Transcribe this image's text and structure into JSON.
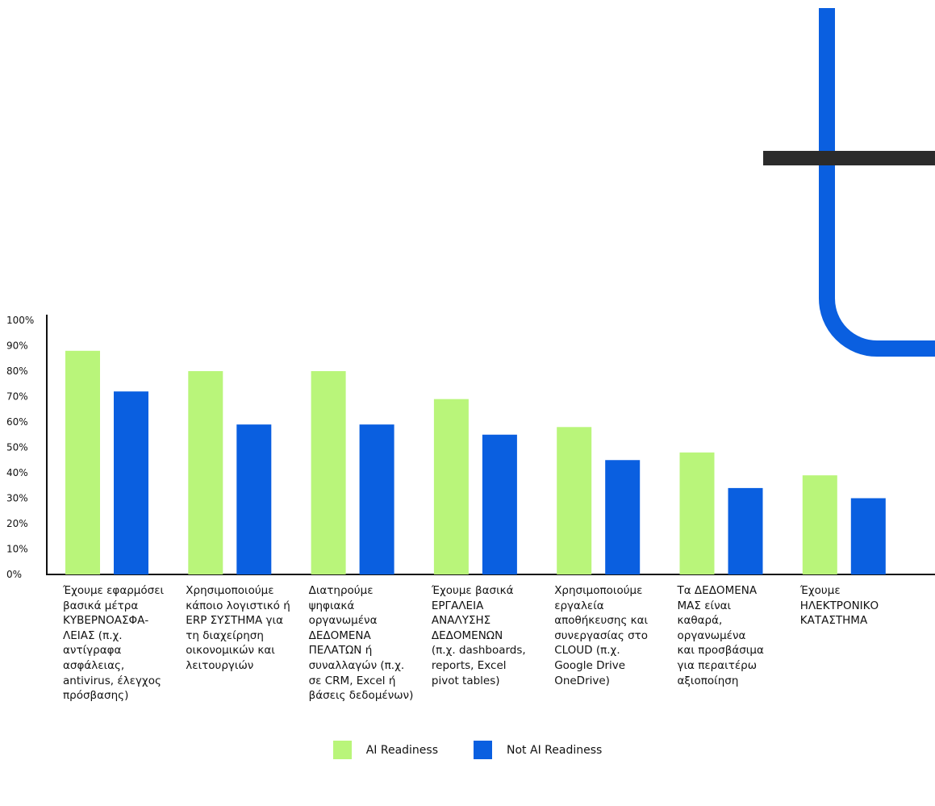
{
  "colors": {
    "ai_readiness": "#b9f57a",
    "not_ai_readiness": "#0a5fe0",
    "deco_blue": "#0a5fe0",
    "deco_dark": "#2b2b2b"
  },
  "legend": [
    {
      "label": "AI Readiness"
    },
    {
      "label": "Not AI Readiness"
    }
  ],
  "chart_data": {
    "type": "bar",
    "title": "",
    "xlabel": "",
    "ylabel": "",
    "ylim": [
      0,
      100
    ],
    "grid": false,
    "legend_position": "bottom-center",
    "yticks": [
      "0%",
      "10%",
      "20%",
      "30%",
      "40%",
      "50%",
      "60%",
      "70%",
      "80%",
      "90%",
      "100%"
    ],
    "categories": [
      "Έχουμε εφαρμόσει\nβασικά μέτρα\nΚΥΒΕΡΝΟΑΣΦΑ-\nΛΕΙΑΣ (π.χ.\nαντίγραφα\nασφάλειας,\nantivirus, έλεγχος\nπρόσβασης)",
      "Χρησιμοποιούμε\nκάποιο λογιστικό ή\nERP ΣΥΣΤΗΜΑ για\nτη διαχείρηση\nοικονομικών και\nλειτουργιών",
      "Διατηρούμε\nψηφιακά\nοργανωμένα\nΔΕΔΟΜΕΝΑ\nΠΕΛΑΤΩΝ ή\nσυναλλαγών (π.χ.\nσε CRM, Excel ή\nβάσεις δεδομένων)",
      "Έχουμε βασικά\nΕΡΓΑΛΕΙΑ\nΑΝΑΛΥΣΗΣ\nΔΕΔΟΜΕΝΩΝ\n(π.χ. dashboards,\nreports, Excel\npivot tables)",
      "Χρησιμοποιούμε\nεργαλεία\nαποθήκευσης και\nσυνεργασίας στο\nCLOUD (π.χ.\nGoogle Drive\nOneDrive)",
      "Τα ΔΕΔΟΜΕΝΑ\nΜΑΣ είναι\nκαθαρά,\nοργανωμένα\nκαι προσβάσιμα\nγια περαιτέρω\nαξιοποίηση",
      "Έχουμε\nΗΛΕΚΤΡΟΝΙΚΟ\nΚΑΤΑΣΤΗΜΑ"
    ],
    "series": [
      {
        "name": "AI Readiness",
        "values": [
          88,
          80,
          80,
          69,
          58,
          48,
          39
        ]
      },
      {
        "name": "Not AI Readiness",
        "values": [
          72,
          59,
          59,
          55,
          45,
          34,
          30
        ]
      }
    ]
  }
}
